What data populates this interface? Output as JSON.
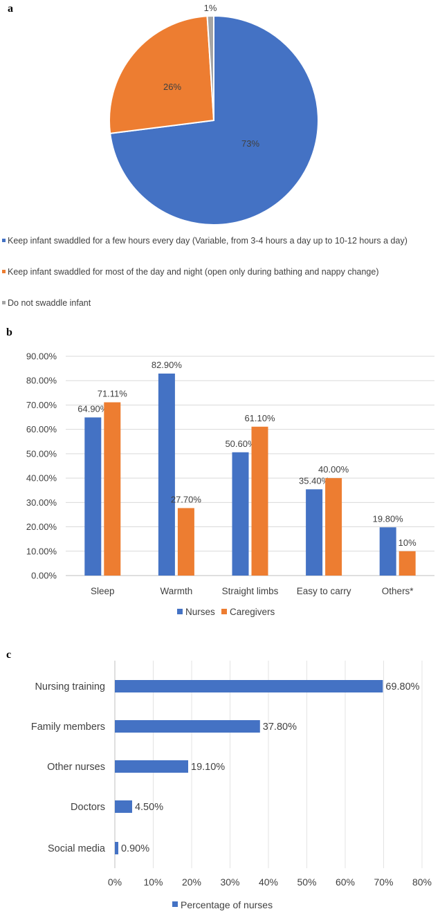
{
  "panels": {
    "a": "a",
    "b": "b",
    "c": "c"
  },
  "chart_data": [
    {
      "type": "pie",
      "panel": "a",
      "slices": [
        {
          "label": "Keep infant swaddled for a few hours every day (Variable, from 3-4 hours a day up to 10-12 hours a day)",
          "value": 73,
          "data_label": "73%",
          "color": "#4472C4"
        },
        {
          "label": "Keep infant swaddled for most of the day and night (open only during bathing and nappy change)",
          "value": 26,
          "data_label": "26%",
          "color": "#ED7D31"
        },
        {
          "label": "Do not swaddle infant",
          "value": 1,
          "data_label": "1%",
          "color": "#A5A5A5"
        }
      ],
      "legend_position": "bottom"
    },
    {
      "type": "bar",
      "panel": "b",
      "categories": [
        "Sleep",
        "Warmth",
        "Straight limbs",
        "Easy to carry",
        "Others*"
      ],
      "series": [
        {
          "name": "Nurses",
          "color": "#4472C4",
          "values": [
            64.9,
            82.9,
            50.6,
            35.4,
            19.8
          ],
          "labels": [
            "64.90%",
            "82.90%",
            "50.60%",
            "35.40%",
            "19.80%"
          ]
        },
        {
          "name": "Caregivers",
          "color": "#ED7D31",
          "values": [
            71.11,
            27.7,
            61.1,
            40.0,
            10.0
          ],
          "labels": [
            "71.11%",
            "27.70%",
            "61.10%",
            "40.00%",
            "10%"
          ]
        }
      ],
      "yticks": [
        "0.00%",
        "10.00%",
        "20.00%",
        "30.00%",
        "40.00%",
        "50.00%",
        "60.00%",
        "70.00%",
        "80.00%",
        "90.00%"
      ],
      "ylim": [
        0,
        90
      ],
      "grid": true,
      "legend_position": "bottom"
    },
    {
      "type": "bar",
      "orientation": "horizontal",
      "panel": "c",
      "categories": [
        "Nursing training",
        "Family members",
        "Other nurses",
        "Doctors",
        "Social media"
      ],
      "series": [
        {
          "name": "Percentage of nurses",
          "color": "#4472C4",
          "values": [
            69.8,
            37.8,
            19.1,
            4.5,
            0.9
          ],
          "labels": [
            "69.80%",
            "37.80%",
            "19.10%",
            "4.50%",
            "0.90%"
          ]
        }
      ],
      "xticks": [
        "0%",
        "10%",
        "20%",
        "30%",
        "40%",
        "50%",
        "60%",
        "70%",
        "80%"
      ],
      "xlim": [
        0,
        80
      ],
      "grid": true,
      "legend_position": "bottom"
    }
  ]
}
